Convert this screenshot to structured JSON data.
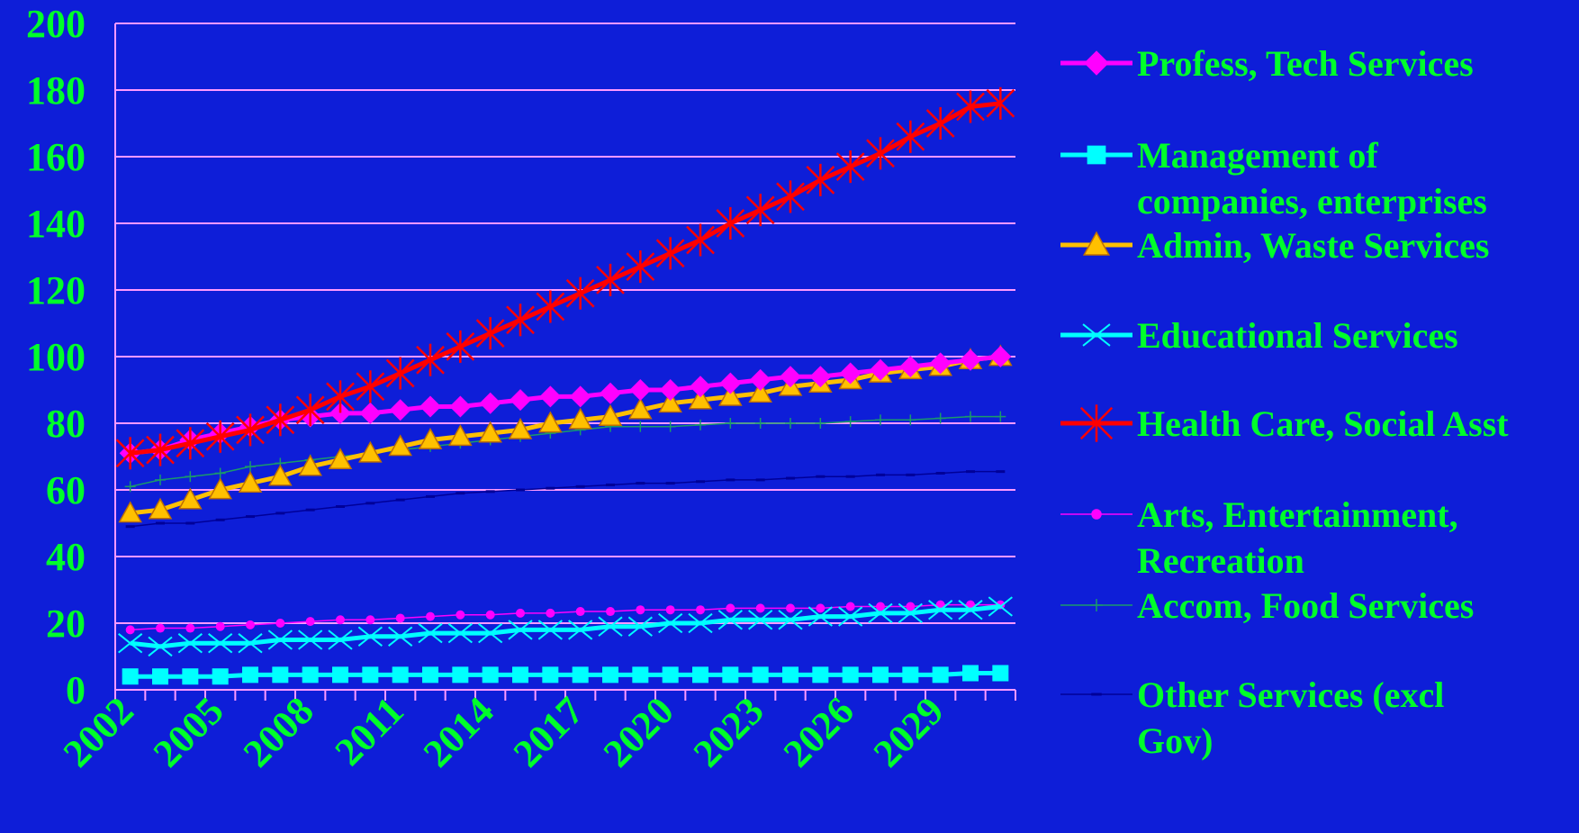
{
  "chart_data": {
    "type": "line",
    "title": "",
    "xlabel": "",
    "ylabel": "",
    "ylim": [
      0,
      200
    ],
    "yticks": [
      "0",
      "20",
      "40",
      "60",
      "80",
      "100",
      "120",
      "140",
      "160",
      "180",
      "200"
    ],
    "xlim": [
      2002,
      2031
    ],
    "x_tick_labels": [
      "2002",
      "2005",
      "2008",
      "2011",
      "2014",
      "2017",
      "2020",
      "2023",
      "2026",
      "2029"
    ],
    "grid": "horizontal",
    "legend_position": "right",
    "x": [
      2002,
      2003,
      2004,
      2005,
      2006,
      2007,
      2008,
      2009,
      2010,
      2011,
      2012,
      2013,
      2014,
      2015,
      2016,
      2017,
      2018,
      2019,
      2020,
      2021,
      2022,
      2023,
      2024,
      2025,
      2026,
      2027,
      2028,
      2029,
      2030,
      2031
    ],
    "series": [
      {
        "name": "Profess, Tech Services",
        "color": "#ff00ff",
        "marker": "diamond",
        "line_width": 5,
        "values": [
          71,
          72,
          75,
          77,
          79,
          81,
          82,
          83,
          83,
          84,
          85,
          85,
          86,
          87,
          88,
          88,
          89,
          90,
          90,
          91,
          92,
          93,
          94,
          94,
          95,
          96,
          97,
          98,
          99,
          100
        ]
      },
      {
        "name": "Management of companies, enterprises",
        "legend_lines": [
          "Management of",
          "companies, enterprises"
        ],
        "color": "#00ffff",
        "marker": "square",
        "line_width": 5,
        "values": [
          4,
          4,
          4,
          4,
          4.5,
          4.5,
          4.5,
          4.5,
          4.5,
          4.5,
          4.5,
          4.5,
          4.5,
          4.5,
          4.5,
          4.5,
          4.5,
          4.5,
          4.5,
          4.5,
          4.5,
          4.5,
          4.5,
          4.5,
          4.5,
          4.5,
          4.5,
          4.5,
          5,
          5
        ]
      },
      {
        "name": "Admin, Waste Services",
        "color": "#ffc000",
        "marker": "triangle",
        "line_width": 5,
        "values": [
          53,
          54,
          57,
          60,
          62,
          64,
          67,
          69,
          71,
          73,
          75,
          76,
          77,
          78,
          80,
          81,
          82,
          84,
          86,
          87,
          88,
          89,
          91,
          92,
          93,
          95,
          96,
          97,
          99,
          100
        ]
      },
      {
        "name": "Educational Services",
        "color": "#00ffff",
        "marker": "x",
        "line_width": 5,
        "values": [
          14,
          13,
          14,
          14,
          14,
          15,
          15,
          15,
          16,
          16,
          17,
          17,
          17,
          18,
          18,
          18,
          19,
          19,
          20,
          20,
          21,
          21,
          21,
          22,
          22,
          23,
          23,
          24,
          24,
          25
        ]
      },
      {
        "name": "Health Care, Social Asst",
        "color": "#ff0000",
        "marker": "star",
        "line_width": 5,
        "values": [
          71,
          72,
          74,
          76,
          78,
          81,
          84,
          88,
          91,
          95,
          99,
          103,
          107,
          111,
          115,
          119,
          123,
          127,
          131,
          135,
          140,
          144,
          148,
          153,
          157,
          161,
          166,
          170,
          175,
          176
        ]
      },
      {
        "name": "Arts, Entertainment, Recreation",
        "legend_lines": [
          "Arts, Entertainment,",
          "Recreation"
        ],
        "color": "#ff00ff",
        "marker": "circle",
        "line_width": 1.5,
        "values": [
          18,
          18.5,
          18.5,
          19,
          19.5,
          20,
          20.5,
          21,
          21,
          21.5,
          22,
          22.5,
          22.5,
          23,
          23,
          23.5,
          23.5,
          24,
          24,
          24,
          24.5,
          24.5,
          24.5,
          24.5,
          25,
          25,
          25,
          25.5,
          25.5,
          25.5
        ]
      },
      {
        "name": "Accom, Food Services",
        "color": "#1a9a6a",
        "marker": "plus",
        "line_width": 1.5,
        "values": [
          61,
          63,
          64,
          65,
          67,
          68,
          69,
          70,
          71,
          72,
          73,
          74,
          75,
          76,
          77,
          78,
          79,
          79,
          79,
          79.5,
          80,
          80,
          80,
          80,
          80.5,
          81,
          81,
          81.5,
          82,
          82
        ]
      },
      {
        "name": "Other Services (excl Gov)",
        "legend_lines": [
          "Other Services (excl",
          "Gov)"
        ],
        "color": "#000098",
        "marker": "dash",
        "line_width": 1.5,
        "values": [
          49,
          50,
          50,
          51,
          52,
          53,
          54,
          55,
          56,
          57,
          58,
          59,
          59.5,
          60,
          60.5,
          61,
          61.5,
          62,
          62,
          62.5,
          63,
          63,
          63.5,
          64,
          64,
          64.5,
          64.5,
          65,
          65.5,
          65.5
        ]
      }
    ]
  },
  "theme": {
    "background": "#0e1ed8",
    "text_color": "#00ff2a",
    "grid_color": "#ff99ff",
    "axis_color": "#ff99ff"
  }
}
